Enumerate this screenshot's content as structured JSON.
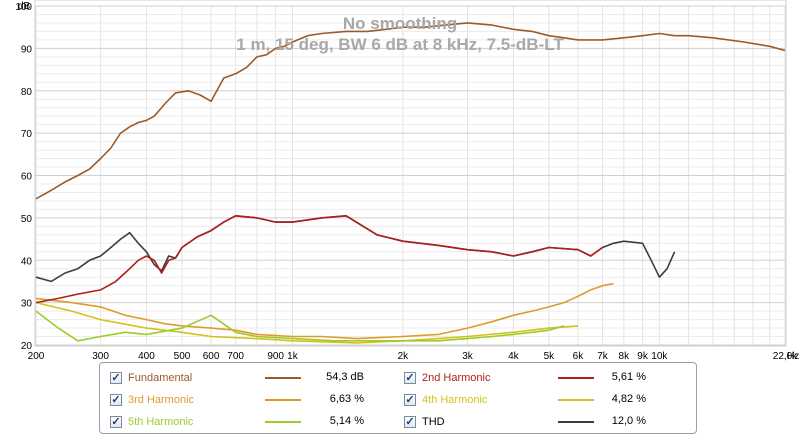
{
  "chart_data": {
    "type": "line",
    "title": "No smoothing",
    "subtitle": "1 m, 15 deg, BW 6 dB at 8 kHz, 7.5-dB-LT",
    "ylabel": "dB",
    "x_unit": "Hz",
    "x_scale": "log",
    "xlim": [
      200,
      22000
    ],
    "ylim": [
      20,
      100
    ],
    "grid": true,
    "x_ticks": [
      {
        "v": 200,
        "label": "200"
      },
      {
        "v": 300,
        "label": "300"
      },
      {
        "v": 400,
        "label": "400"
      },
      {
        "v": 500,
        "label": "500"
      },
      {
        "v": 600,
        "label": "600"
      },
      {
        "v": 700,
        "label": "700"
      },
      {
        "v": 900,
        "label": "900"
      },
      {
        "v": 1000,
        "label": "1k"
      },
      {
        "v": 2000,
        "label": "2k"
      },
      {
        "v": 3000,
        "label": "3k"
      },
      {
        "v": 4000,
        "label": "4k"
      },
      {
        "v": 5000,
        "label": "5k"
      },
      {
        "v": 6000,
        "label": "6k"
      },
      {
        "v": 7000,
        "label": "7k"
      },
      {
        "v": 8000,
        "label": "8k"
      },
      {
        "v": 9000,
        "label": "9k"
      },
      {
        "v": 10000,
        "label": "10k"
      },
      {
        "v": 22000,
        "label": "22,0k"
      }
    ],
    "x_unit_label": "Hz",
    "y_ticks": [
      {
        "v": 20,
        "label": "20"
      },
      {
        "v": 30,
        "label": "30"
      },
      {
        "v": 40,
        "label": "40"
      },
      {
        "v": 50,
        "label": "50"
      },
      {
        "v": 60,
        "label": "60"
      },
      {
        "v": 70,
        "label": "70"
      },
      {
        "v": 80,
        "label": "80"
      },
      {
        "v": 90,
        "label": "90"
      },
      {
        "v": 100,
        "label": "100"
      }
    ],
    "legend_position": "bottom",
    "series": [
      {
        "name": "Fundamental",
        "color": "#9b5a2a",
        "value": "54,3 dB",
        "x": [
          200,
          220,
          240,
          260,
          280,
          300,
          320,
          340,
          360,
          380,
          400,
          420,
          450,
          480,
          520,
          560,
          600,
          650,
          700,
          750,
          800,
          850,
          900,
          950,
          1000,
          1100,
          1200,
          1400,
          1600,
          1800,
          2000,
          2300,
          2600,
          3000,
          3500,
          4000,
          4500,
          5000,
          5500,
          6000,
          7000,
          8000,
          9000,
          10000,
          11000,
          12000,
          14000,
          17000,
          20000,
          22000
        ],
        "y": [
          54.5,
          56.5,
          58.5,
          60,
          61.5,
          64,
          66.5,
          70,
          71.5,
          72.5,
          73,
          74,
          77,
          79.5,
          80,
          79,
          77.5,
          83,
          84,
          85.5,
          88,
          88.5,
          90,
          90.5,
          91.5,
          93,
          93.5,
          94,
          94,
          94.5,
          95,
          95,
          95.5,
          96,
          95.5,
          94.5,
          94,
          93,
          92.5,
          92,
          92,
          92.5,
          93,
          93.5,
          93,
          93,
          92.5,
          91.5,
          90.5,
          89.5
        ]
      },
      {
        "name": "2nd Harmonic",
        "color": "#b01e1e",
        "value": "5,61 %",
        "x": [
          200,
          230,
          260,
          300,
          330,
          360,
          380,
          400,
          420,
          440,
          460,
          480,
          500,
          550,
          600,
          650,
          700,
          800,
          900,
          1000,
          1200,
          1400,
          1700,
          2000,
          2500,
          3000,
          3500,
          4000,
          4500,
          5000,
          6000,
          6500,
          7000
        ],
        "y": [
          30,
          31,
          32,
          33,
          35,
          38,
          40,
          41,
          40,
          37,
          40,
          40.5,
          43,
          45.5,
          47,
          49,
          50.5,
          50,
          49,
          49,
          50,
          50.5,
          46,
          44.5,
          43.5,
          42.5,
          42,
          41,
          42,
          43,
          42.5,
          41,
          43
        ]
      },
      {
        "name": "3rd Harmonic",
        "color": "#e09a2c",
        "value": "6,63 %",
        "x": [
          200,
          250,
          300,
          350,
          400,
          450,
          500,
          600,
          700,
          800,
          1000,
          1200,
          1500,
          2000,
          2500,
          3000,
          3500,
          4000,
          4500,
          5000,
          5500,
          6000,
          6500,
          7000,
          7500
        ],
        "y": [
          31,
          30,
          29,
          27,
          26,
          25,
          24.5,
          24,
          23.5,
          22.5,
          22,
          22,
          21.5,
          22,
          22.5,
          24,
          25.5,
          27,
          28,
          29,
          30,
          31.5,
          33,
          34,
          34.5
        ]
      },
      {
        "name": "4th Harmonic",
        "color": "#d4c21c",
        "value": "4,82 %",
        "x": [
          200,
          250,
          300,
          400,
          500,
          600,
          800,
          1000,
          1500,
          2000,
          2500,
          3000,
          4000,
          5000,
          6000
        ],
        "y": [
          30,
          28,
          26,
          24,
          23,
          22,
          21.5,
          21,
          20.5,
          21,
          21.5,
          22,
          23,
          24,
          24.5
        ]
      },
      {
        "name": "5th Harmonic",
        "color": "#9ccc2c",
        "value": "5,14 %",
        "x": [
          200,
          230,
          260,
          300,
          350,
          400,
          500,
          600,
          700,
          800,
          1000,
          1300,
          1600,
          2000,
          2500,
          3000,
          3500,
          4000,
          4500,
          5000,
          5500
        ],
        "y": [
          28,
          24,
          21,
          22,
          23,
          22.5,
          24,
          27,
          23,
          22,
          21.5,
          21,
          21,
          21,
          21,
          21.5,
          22,
          22.5,
          23,
          23.5,
          24.5
        ]
      },
      {
        "name": "THD",
        "color": "#3d3d3d",
        "value": "12,0 %",
        "x": [
          200,
          220,
          240,
          260,
          280,
          300,
          320,
          340,
          360,
          380,
          400,
          420,
          440,
          460,
          480,
          500,
          550,
          600,
          650,
          700,
          800,
          900,
          1000,
          1200,
          1400,
          1700,
          2000,
          2500,
          3000,
          3500,
          4000,
          4500,
          5000,
          6000,
          6500,
          7000,
          7500,
          8000,
          9000,
          9500,
          10000,
          10500,
          11000
        ],
        "y": [
          36,
          35,
          37,
          38,
          40,
          41,
          43,
          45,
          46.5,
          44,
          42,
          39,
          37.5,
          41,
          40.5,
          43,
          45.5,
          47,
          49,
          50.5,
          50,
          49,
          49,
          50,
          50.5,
          46,
          44.5,
          43.5,
          42.5,
          42,
          41,
          42,
          43,
          42.5,
          41,
          43,
          44,
          44.5,
          44,
          40,
          36,
          38,
          42
        ]
      }
    ]
  }
}
